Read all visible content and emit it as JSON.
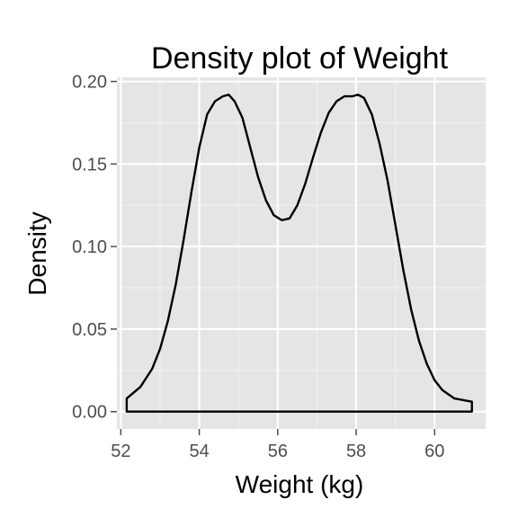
{
  "chart_data": {
    "type": "area",
    "title": "Density plot of Weight",
    "xlabel": "Weight (kg)",
    "ylabel": "Density",
    "xlim": [
      51.9,
      61.3
    ],
    "ylim": [
      -0.0105,
      0.2025
    ],
    "x_ticks": [
      52,
      54,
      56,
      58,
      60
    ],
    "x_tick_labels": [
      "52",
      "54",
      "56",
      "58",
      "60"
    ],
    "y_ticks": [
      0.0,
      0.05,
      0.1,
      0.15,
      0.2
    ],
    "y_tick_labels": [
      "0.00",
      "0.05",
      "0.10",
      "0.15",
      "0.20"
    ],
    "grid": true,
    "colors": {
      "panel": "#e5e5e5",
      "grid_major": "#ffffff",
      "grid_minor": "#f2f2f2",
      "line": "#000000",
      "fill": "none"
    },
    "series": [
      {
        "x": [
          52.15,
          52.5,
          52.8,
          53.0,
          53.2,
          53.4,
          53.6,
          53.8,
          54.0,
          54.2,
          54.4,
          54.6,
          54.75,
          54.9,
          55.1,
          55.3,
          55.5,
          55.7,
          55.9,
          56.1,
          56.3,
          56.5,
          56.7,
          56.9,
          57.1,
          57.3,
          57.5,
          57.7,
          57.9,
          58.05,
          58.2,
          58.4,
          58.6,
          58.8,
          59.0,
          59.2,
          59.4,
          59.6,
          59.8,
          60.0,
          60.2,
          60.5,
          60.95
        ],
        "y": [
          0.008,
          0.015,
          0.026,
          0.038,
          0.055,
          0.077,
          0.104,
          0.133,
          0.16,
          0.18,
          0.188,
          0.191,
          0.192,
          0.188,
          0.178,
          0.16,
          0.142,
          0.128,
          0.119,
          0.116,
          0.117,
          0.125,
          0.138,
          0.154,
          0.169,
          0.181,
          0.188,
          0.191,
          0.191,
          0.192,
          0.19,
          0.18,
          0.162,
          0.14,
          0.113,
          0.086,
          0.062,
          0.043,
          0.029,
          0.019,
          0.013,
          0.008,
          0.006
        ]
      }
    ]
  }
}
